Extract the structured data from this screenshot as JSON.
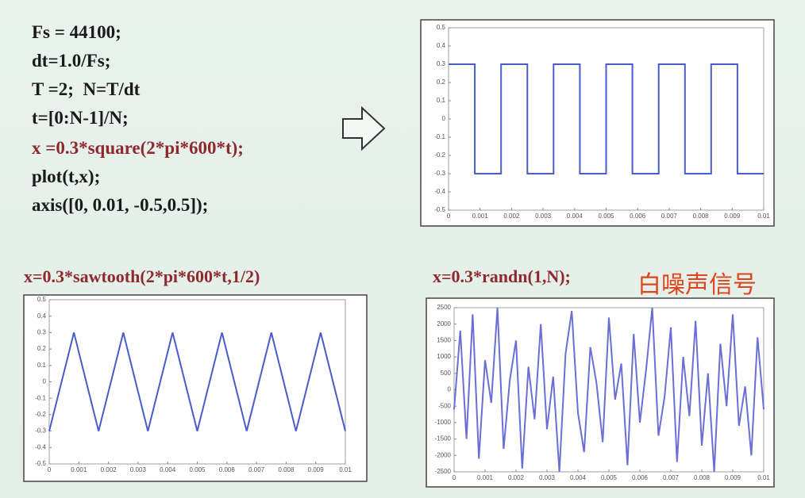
{
  "code": {
    "lines": [
      "Fs = 44100;",
      "dt=1.0/Fs;",
      "T =2;  N=T/dt",
      "t=[0:N-1]/N;",
      "x =0.3*square(2*pi*600*t);",
      "plot(t,x);",
      "axis([0, 0.01, -0.5,0.5]);"
    ]
  },
  "chart_data": [
    {
      "type": "line",
      "color": "#4a5cc9",
      "x": [
        0,
        0.000833,
        0.000833,
        0.001667,
        0.001667,
        0.0025,
        0.0025,
        0.003333,
        0.003333,
        0.004167,
        0.004167,
        0.005,
        0.005,
        0.005833,
        0.005833,
        0.006667,
        0.006667,
        0.0075,
        0.0075,
        0.008333,
        0.008333,
        0.009167,
        0.009167,
        0.01
      ],
      "values": [
        0.3,
        0.3,
        -0.3,
        -0.3,
        0.3,
        0.3,
        -0.3,
        -0.3,
        0.3,
        0.3,
        -0.3,
        -0.3,
        0.3,
        0.3,
        -0.3,
        -0.3,
        0.3,
        0.3,
        -0.3,
        -0.3,
        0.3,
        0.3,
        -0.3,
        -0.3
      ],
      "xlim": [
        0,
        0.01
      ],
      "xticks": [
        0,
        0.001,
        0.002,
        0.003,
        0.004,
        0.005,
        0.006,
        0.007,
        0.008,
        0.009,
        0.01
      ],
      "ylim": [
        -0.5,
        0.5
      ],
      "yticks": [
        -0.5,
        -0.4,
        -0.3,
        -0.2,
        -0.1,
        0,
        0.1,
        0.2,
        0.3,
        0.4,
        0.5
      ]
    },
    {
      "type": "line",
      "title": "x=0.3*sawtooth(2*pi*600*t,1/2)",
      "color": "#4a5cc9",
      "x": [
        0,
        0.000833,
        0.001667,
        0.0025,
        0.003333,
        0.004167,
        0.005,
        0.005833,
        0.006667,
        0.0075,
        0.008333,
        0.009167,
        0.01
      ],
      "values": [
        -0.3,
        0.3,
        -0.3,
        0.3,
        -0.3,
        0.3,
        -0.3,
        0.3,
        -0.3,
        0.3,
        -0.3,
        0.3,
        -0.3
      ],
      "xlim": [
        0,
        0.01
      ],
      "xticks": [
        0,
        0.001,
        0.002,
        0.003,
        0.004,
        0.005,
        0.006,
        0.007,
        0.008,
        0.009,
        0.01
      ],
      "ylim": [
        -0.5,
        0.5
      ],
      "yticks": [
        -0.5,
        -0.4,
        -0.3,
        -0.2,
        -0.1,
        0,
        0.1,
        0.2,
        0.3,
        0.4,
        0.5
      ]
    },
    {
      "type": "line",
      "title": "x=0.3*randn(1,N);",
      "annotation": "白噪声信号",
      "color": "#6a6fd6",
      "x": [
        0,
        0.0002,
        0.0004,
        0.0006,
        0.0008,
        0.001,
        0.0012,
        0.0014,
        0.0016,
        0.0018,
        0.002,
        0.0022,
        0.0024,
        0.0026,
        0.0028,
        0.003,
        0.0032,
        0.0034,
        0.0036,
        0.0038,
        0.004,
        0.0042,
        0.0044,
        0.0046,
        0.0048,
        0.005,
        0.0052,
        0.0054,
        0.0056,
        0.0058,
        0.006,
        0.0062,
        0.0064,
        0.0066,
        0.0068,
        0.007,
        0.0072,
        0.0074,
        0.0076,
        0.0078,
        0.008,
        0.0082,
        0.0084,
        0.0086,
        0.0088,
        0.009,
        0.0092,
        0.0094,
        0.0096,
        0.0098,
        0.01
      ],
      "values": [
        -600,
        1800,
        -1500,
        2300,
        -2100,
        900,
        -400,
        2500,
        -1800,
        300,
        1500,
        -2400,
        700,
        -900,
        2000,
        -1200,
        400,
        -2500,
        1100,
        2400,
        -700,
        -1900,
        1300,
        200,
        -1600,
        2200,
        -300,
        800,
        -2300,
        1700,
        -1000,
        600,
        2500,
        -1400,
        -200,
        1900,
        -2200,
        1000,
        -800,
        2100,
        -1700,
        500,
        -2500,
        1400,
        -500,
        2300,
        -1100,
        100,
        -2000,
        1600,
        -600
      ],
      "xlim": [
        0,
        0.01
      ],
      "xticks": [
        0,
        0.001,
        0.002,
        0.003,
        0.004,
        0.005,
        0.006,
        0.007,
        0.008,
        0.009,
        0.01
      ],
      "ylim": [
        -2500,
        2500
      ],
      "yticks": [
        -2500,
        -2000,
        -1500,
        -1000,
        -500,
        0,
        500,
        1000,
        1500,
        2000,
        2500
      ]
    }
  ]
}
